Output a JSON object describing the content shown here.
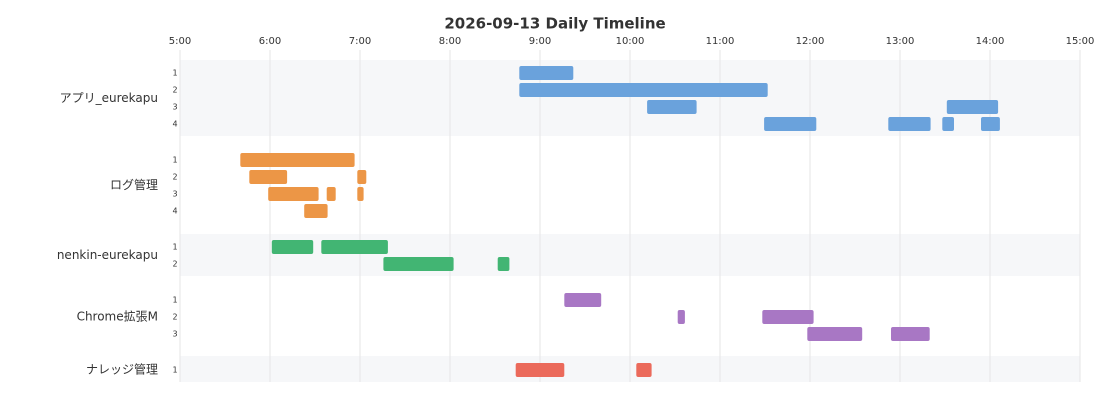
{
  "chart_data": {
    "type": "timeline",
    "title": "2026-09-13 Daily Timeline",
    "xlim": [
      5,
      15
    ],
    "xticks": [
      {
        "value": 5,
        "label": "5:00"
      },
      {
        "value": 6,
        "label": "6:00"
      },
      {
        "value": 7,
        "label": "7:00"
      },
      {
        "value": 8,
        "label": "8:00"
      },
      {
        "value": 9,
        "label": "9:00"
      },
      {
        "value": 10,
        "label": "10:00"
      },
      {
        "value": 11,
        "label": "11:00"
      },
      {
        "value": 12,
        "label": "12:00"
      },
      {
        "value": 13,
        "label": "13:00"
      },
      {
        "value": 14,
        "label": "14:00"
      },
      {
        "value": 15,
        "label": "15:00"
      }
    ],
    "grid": true,
    "groups": [
      {
        "name": "アプリ_eurekapu",
        "color": "#6aa2dc",
        "lanes": [
          {
            "label": 1,
            "bars": [
              [
                8.77,
                9.37
              ]
            ]
          },
          {
            "label": 2,
            "bars": [
              [
                8.77,
                11.53
              ]
            ]
          },
          {
            "label": 3,
            "bars": [
              [
                10.19,
                10.74
              ],
              [
                13.52,
                14.09
              ]
            ]
          },
          {
            "label": 4,
            "bars": [
              [
                11.49,
                12.07
              ],
              [
                12.87,
                13.34
              ],
              [
                13.47,
                13.6
              ],
              [
                13.9,
                14.11
              ]
            ]
          }
        ]
      },
      {
        "name": "ログ管理",
        "color": "#ec9646",
        "lanes": [
          {
            "label": 1,
            "bars": [
              [
                5.67,
                6.94
              ]
            ]
          },
          {
            "label": 2,
            "bars": [
              [
                5.77,
                6.19
              ],
              [
                6.97,
                7.07
              ]
            ]
          },
          {
            "label": 3,
            "bars": [
              [
                5.98,
                6.54
              ],
              [
                6.63,
                6.73
              ],
              [
                6.97,
                7.04
              ]
            ]
          },
          {
            "label": 4,
            "bars": [
              [
                6.38,
                6.64
              ]
            ]
          }
        ]
      },
      {
        "name": "nenkin-eurekapu",
        "color": "#42b573",
        "lanes": [
          {
            "label": 1,
            "bars": [
              [
                6.02,
                6.48
              ],
              [
                6.57,
                7.31
              ]
            ]
          },
          {
            "label": 2,
            "bars": [
              [
                7.26,
                8.04
              ],
              [
                8.53,
                8.66
              ]
            ]
          }
        ]
      },
      {
        "name": "Chrome拡張M",
        "color": "#a877c4",
        "lanes": [
          {
            "label": 1,
            "bars": [
              [
                9.27,
                9.68
              ]
            ]
          },
          {
            "label": 2,
            "bars": [
              [
                10.53,
                10.61
              ],
              [
                11.47,
                12.04
              ]
            ]
          },
          {
            "label": 3,
            "bars": [
              [
                11.97,
                12.58
              ],
              [
                12.9,
                13.33
              ]
            ]
          }
        ]
      },
      {
        "name": "ナレッジ管理",
        "color": "#eb6a5b",
        "lanes": [
          {
            "label": 1,
            "bars": [
              [
                8.73,
                9.27
              ],
              [
                10.07,
                10.24
              ]
            ]
          }
        ]
      }
    ]
  }
}
